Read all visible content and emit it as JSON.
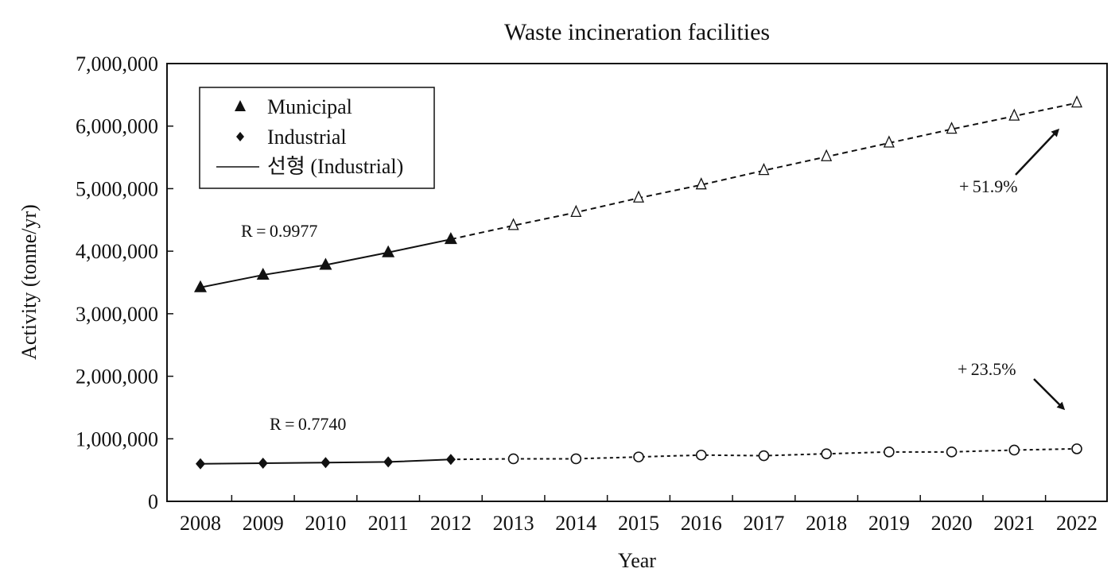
{
  "chart_data": {
    "type": "line",
    "title": "Waste incineration facilities",
    "xlabel": "Year",
    "ylabel": "Activity (tonne/yr)",
    "categories": [
      "2008",
      "2009",
      "2010",
      "2011",
      "2012",
      "2013",
      "2014",
      "2015",
      "2016",
      "2017",
      "2018",
      "2019",
      "2020",
      "2021",
      "2022"
    ],
    "ylim": [
      0,
      7000000
    ],
    "y_ticks": [
      0,
      1000000,
      2000000,
      3000000,
      4000000,
      5000000,
      6000000,
      7000000
    ],
    "y_tick_labels": [
      "0",
      "1,000,000",
      "2,000,000",
      "3,000,000",
      "4,000,000",
      "5,000,000",
      "6,000,000",
      "7,000,000"
    ],
    "grid": false,
    "legend_position": "top-left",
    "legend": [
      {
        "label": "Municipal",
        "marker": "triangle"
      },
      {
        "label": "Industrial",
        "marker": "diamond"
      },
      {
        "label": "선형 (Industrial)",
        "marker": "line"
      }
    ],
    "series": [
      {
        "name": "Municipal",
        "marker": "triangle",
        "observed": {
          "x": [
            "2008",
            "2009",
            "2010",
            "2011",
            "2012"
          ],
          "values": [
            3420000,
            3620000,
            3780000,
            3980000,
            4190000
          ]
        },
        "projected": {
          "x": [
            "2013",
            "2014",
            "2015",
            "2016",
            "2017",
            "2018",
            "2019",
            "2020",
            "2021",
            "2022"
          ],
          "values": [
            4410000,
            4620000,
            4850000,
            5060000,
            5290000,
            5510000,
            5730000,
            5950000,
            6160000,
            6370000
          ]
        }
      },
      {
        "name": "Industrial",
        "marker": "diamond",
        "observed": {
          "x": [
            "2008",
            "2009",
            "2010",
            "2011",
            "2012"
          ],
          "values": [
            600000,
            610000,
            620000,
            630000,
            670000
          ]
        },
        "projected": {
          "x": [
            "2013",
            "2014",
            "2015",
            "2016",
            "2017",
            "2018",
            "2019",
            "2020",
            "2021",
            "2022"
          ],
          "values": [
            680000,
            680000,
            710000,
            740000,
            730000,
            760000,
            790000,
            790000,
            820000,
            840000
          ]
        }
      }
    ],
    "annotations": [
      {
        "text": "R = 0.9977",
        "series": "Municipal"
      },
      {
        "text": "R = 0.7740",
        "series": "Industrial"
      },
      {
        "text": "+ 51.9%",
        "series": "Municipal"
      },
      {
        "text": "+ 23.5%",
        "series": "Industrial"
      }
    ],
    "colors": {
      "line": "#111111",
      "background": "#ffffff"
    }
  }
}
